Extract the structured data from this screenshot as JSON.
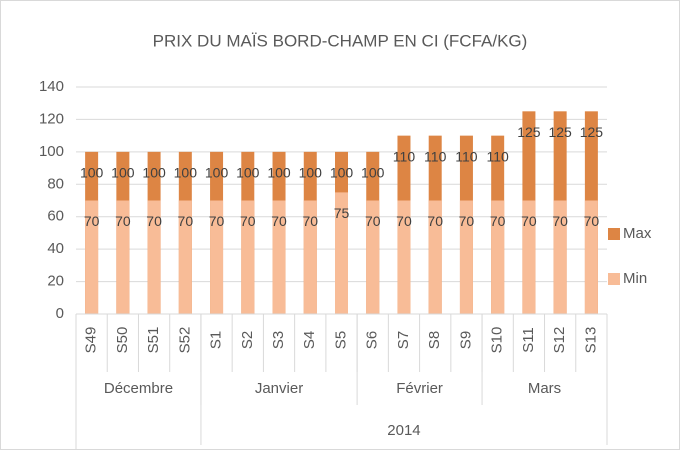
{
  "chart_data": {
    "type": "bar",
    "title": "PRIX DU MAÏS BORD-CHAMP EN CI (FCFA/KG)",
    "categories": [
      "S49",
      "S50",
      "S51",
      "S52",
      "S1",
      "S2",
      "S3",
      "S4",
      "S5",
      "S6",
      "S7",
      "S8",
      "S9",
      "S10",
      "S11",
      "S12",
      "S13"
    ],
    "months": [
      "Décembre",
      "Décembre",
      "Décembre",
      "Décembre",
      "Janvier",
      "Janvier",
      "Janvier",
      "Janvier",
      "Janvier",
      "Février",
      "Février",
      "Février",
      "Février",
      "Mars",
      "Mars",
      "Mars",
      "Mars"
    ],
    "years": [
      null,
      null,
      null,
      null,
      "2014",
      "2014",
      "2014",
      "2014",
      "2014",
      "2014",
      "2014",
      "2014",
      "2014",
      "2014",
      "2014",
      "2014",
      "2014"
    ],
    "series": [
      {
        "name": "Max",
        "color": "#dd8544",
        "values": [
          100,
          100,
          100,
          100,
          100,
          100,
          100,
          100,
          100,
          100,
          110,
          110,
          110,
          110,
          125,
          125,
          125
        ]
      },
      {
        "name": "Min",
        "color": "#f8bc97",
        "values": [
          70,
          70,
          70,
          70,
          70,
          70,
          70,
          70,
          75,
          70,
          70,
          70,
          70,
          70,
          70,
          70,
          70
        ]
      }
    ],
    "ylim": [
      0,
      140
    ],
    "yticks": [
      0,
      20,
      40,
      60,
      80,
      100,
      120,
      140
    ],
    "grid": true,
    "legend": "right"
  }
}
